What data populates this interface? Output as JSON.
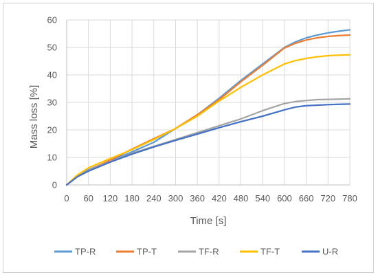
{
  "chart_data": {
    "type": "line",
    "title": "",
    "xlabel": "Time [s]",
    "ylabel": "Mass loss [%]",
    "xlim": [
      0,
      780
    ],
    "ylim": [
      0,
      60
    ],
    "xticks": [
      0,
      60,
      120,
      180,
      240,
      300,
      360,
      420,
      480,
      540,
      600,
      660,
      720,
      780
    ],
    "yticks": [
      0,
      10,
      20,
      30,
      40,
      50,
      60
    ],
    "grid": true,
    "legend": "bottom",
    "series": [
      {
        "name": "TP-R",
        "color": "#5B9BD5",
        "x": [
          0,
          30,
          60,
          120,
          180,
          240,
          300,
          360,
          420,
          480,
          540,
          600,
          630,
          660,
          690,
          720,
          750,
          780
        ],
        "y": [
          0,
          3.2,
          5.5,
          8.8,
          12.0,
          15.5,
          20.5,
          25.5,
          31.5,
          38.0,
          44.0,
          50.0,
          52.0,
          53.5,
          54.5,
          55.3,
          55.9,
          56.4
        ]
      },
      {
        "name": "TP-T",
        "color": "#ED7D31",
        "x": [
          0,
          30,
          60,
          120,
          180,
          240,
          300,
          360,
          420,
          480,
          540,
          600,
          630,
          660,
          690,
          720,
          750,
          780
        ],
        "y": [
          0,
          3.0,
          5.2,
          9.0,
          13.0,
          16.8,
          20.5,
          25.5,
          31.0,
          37.5,
          43.5,
          49.8,
          51.5,
          52.7,
          53.5,
          54.0,
          54.3,
          54.5
        ]
      },
      {
        "name": "TF-R",
        "color": "#A5A5A5",
        "x": [
          0,
          30,
          60,
          120,
          180,
          240,
          300,
          360,
          420,
          480,
          540,
          600,
          630,
          660,
          690,
          720,
          750,
          780
        ],
        "y": [
          0,
          3.0,
          5.2,
          8.5,
          11.5,
          14.0,
          16.5,
          19.0,
          21.5,
          24.0,
          27.0,
          29.6,
          30.3,
          30.7,
          31.0,
          31.1,
          31.2,
          31.3
        ]
      },
      {
        "name": "TF-T",
        "color": "#FFC000",
        "x": [
          0,
          30,
          60,
          120,
          180,
          240,
          300,
          360,
          420,
          480,
          540,
          600,
          630,
          660,
          690,
          720,
          750,
          780
        ],
        "y": [
          0,
          3.6,
          6.2,
          9.6,
          12.8,
          16.5,
          20.5,
          25.0,
          30.5,
          35.5,
          40.0,
          44.0,
          45.2,
          46.0,
          46.6,
          47.0,
          47.2,
          47.3
        ]
      },
      {
        "name": "U-R",
        "color": "#4472C4",
        "x": [
          0,
          30,
          60,
          120,
          180,
          240,
          300,
          360,
          420,
          480,
          540,
          600,
          630,
          660,
          690,
          720,
          750,
          780
        ],
        "y": [
          0,
          3.0,
          5.0,
          8.3,
          11.2,
          13.8,
          16.2,
          18.5,
          20.8,
          23.0,
          25.0,
          27.3,
          28.3,
          28.8,
          29.0,
          29.2,
          29.3,
          29.4
        ]
      }
    ]
  }
}
